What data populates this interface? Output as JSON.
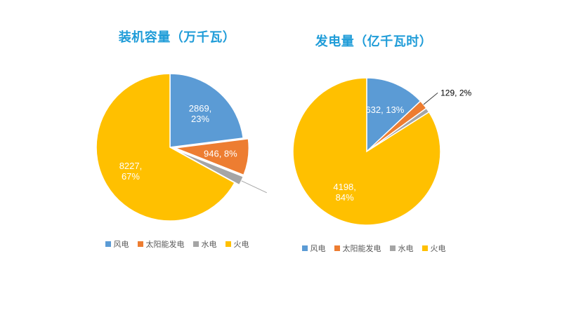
{
  "page": {
    "background": "#FFFFFF"
  },
  "palette": {
    "wind_blue": "#5B9BD5",
    "solar_orange": "#ED7D31",
    "hydro_gray": "#A5A5A5",
    "thermal_yellow": "#FFC000",
    "title_blue": "#1F9CD8",
    "legend_text": "#595959",
    "inside_label": "#FFFFFF",
    "outside_label": "#000000"
  },
  "chart_data": [
    {
      "type": "pie",
      "title": "装机容量（万千瓦）",
      "unit": "万千瓦",
      "legend_position": "bottom",
      "slices": [
        {
          "name": "风电",
          "name_en": "wind",
          "value": 2869,
          "pct": 23,
          "color": "#5B9BD5",
          "label_lines": [
            "2869,",
            "23%"
          ],
          "label_pos": "inside",
          "label_color": "#FFFFFF"
        },
        {
          "name": "太阳能发电",
          "name_en": "solar",
          "value": 946,
          "pct": 8,
          "color": "#ED7D31",
          "label_lines": [
            "946, 8%"
          ],
          "label_pos": "inside",
          "label_color": "#FFFFFF",
          "explode": true
        },
        {
          "name": "水电",
          "name_en": "hydro",
          "pct": 2,
          "color": "#A5A5A5",
          "label_pos": "none",
          "explode": true,
          "leader": true,
          "leader_len": 1.38,
          "leader_color": "#A6A6A6"
        },
        {
          "name": "火电",
          "name_en": "thermal",
          "value": 8227,
          "pct": 67,
          "color": "#FFC000",
          "label_lines": [
            "8227,",
            "67%"
          ],
          "label_pos": "inside",
          "label_color": "#FFFFFF"
        }
      ],
      "legend": [
        {
          "label": "风电",
          "color": "#5B9BD5"
        },
        {
          "label": "太阳能发电",
          "color": "#ED7D31"
        },
        {
          "label": "水电",
          "color": "#A5A5A5"
        },
        {
          "label": "火电",
          "color": "#FFC000"
        }
      ]
    },
    {
      "type": "pie",
      "title": "发电量（亿千瓦时）",
      "unit": "亿千瓦时",
      "legend_position": "bottom",
      "slices": [
        {
          "name": "风电",
          "name_en": "wind",
          "value": 632,
          "pct": 13,
          "color": "#5B9BD5",
          "label_lines": [
            "632, 13%"
          ],
          "label_pos": "inside",
          "label_color": "#FFFFFF"
        },
        {
          "name": "太阳能发电",
          "name_en": "solar",
          "value": 129,
          "pct": 2,
          "color": "#ED7D31",
          "label_lines": [
            "129, 2%"
          ],
          "label_pos": "outside",
          "label_color": "#000000",
          "leader": true,
          "leader_len": 1.25,
          "leader_color": "#404040"
        },
        {
          "name": "水电",
          "name_en": "hydro",
          "pct": 1,
          "color": "#A5A5A5",
          "label_pos": "none"
        },
        {
          "name": "火电",
          "name_en": "thermal",
          "value": 4198,
          "pct": 84,
          "color": "#FFC000",
          "label_lines": [
            "4198,",
            "84%"
          ],
          "label_pos": "inside",
          "label_color": "#FFFFFF"
        }
      ],
      "legend": [
        {
          "label": "风电",
          "color": "#5B9BD5"
        },
        {
          "label": "太阳能发电",
          "color": "#ED7D31"
        },
        {
          "label": "水电",
          "color": "#A5A5A5"
        },
        {
          "label": "火电",
          "color": "#FFC000"
        }
      ]
    }
  ]
}
